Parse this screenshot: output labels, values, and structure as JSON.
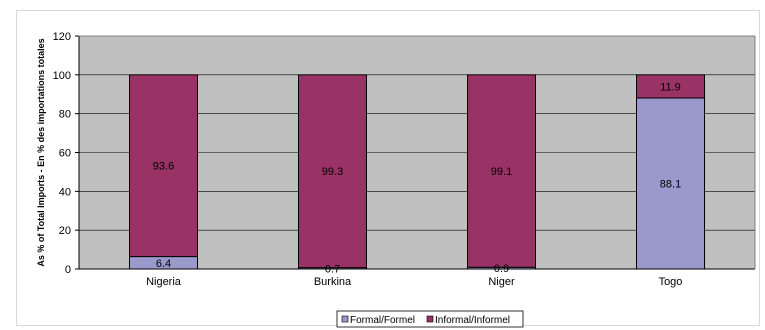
{
  "chart_data": {
    "type": "bar",
    "stacked": true,
    "categories": [
      "Nigeria",
      "Burkina",
      "Niger",
      "Togo"
    ],
    "series": [
      {
        "name": "Formal/Formel",
        "color": "#9999cc",
        "values": [
          6.4,
          0.7,
          0.9,
          88.1
        ]
      },
      {
        "name": "Informal/Informel",
        "color": "#993366",
        "values": [
          93.6,
          99.3,
          99.1,
          11.9
        ]
      }
    ],
    "data_labels": [
      [
        "6.4",
        "0.7",
        "0.9",
        "88.1"
      ],
      [
        "93.6",
        "99.3",
        "99.1",
        "11.9"
      ]
    ],
    "title": "",
    "xlabel": "",
    "ylabel": "As % of Total Imports - En % des importations totales",
    "ylim": [
      0,
      120
    ],
    "yticks": [
      "0",
      "20",
      "40",
      "60",
      "80",
      "100",
      "120"
    ],
    "grid": true,
    "plot_background": "#c0c0c0",
    "legend": "bottom-center"
  }
}
